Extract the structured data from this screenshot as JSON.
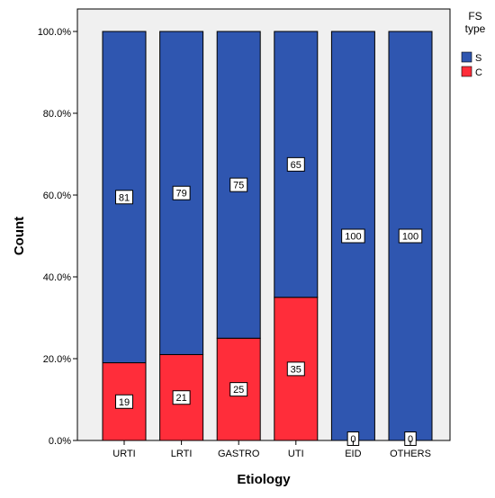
{
  "chart_data": {
    "type": "bar",
    "stacked": true,
    "percent": true,
    "xlabel": "Etiology",
    "ylabel": "Count",
    "categories": [
      "URTI",
      "LRTI",
      "GASTRO",
      "UTI",
      "EID",
      "OTHERS"
    ],
    "series": [
      {
        "name": "C",
        "color": "#ff2d3a",
        "values": [
          19,
          21,
          25,
          35,
          0,
          0
        ],
        "labels": [
          "19",
          "21",
          "25",
          "35",
          "0",
          "0"
        ]
      },
      {
        "name": "S",
        "color": "#2f56b0",
        "values": [
          81,
          79,
          75,
          65,
          100,
          100
        ],
        "labels": [
          "81",
          "79",
          "75",
          "65",
          "100",
          "100"
        ]
      }
    ],
    "ylim": [
      0,
      100
    ],
    "yticks": [
      0,
      20,
      40,
      60,
      80,
      100
    ],
    "ytick_labels": [
      "0.0%",
      "20.0%",
      "40.0%",
      "60.0%",
      "80.0%",
      "100.0%"
    ],
    "legend": {
      "title_lines": [
        "FS",
        "type"
      ],
      "position": "top-right",
      "entries": [
        {
          "name": "S",
          "color": "#2f56b0"
        },
        {
          "name": "C",
          "color": "#ff2d3a"
        }
      ]
    },
    "plot_background": "#f0f0f0",
    "grid": false
  }
}
